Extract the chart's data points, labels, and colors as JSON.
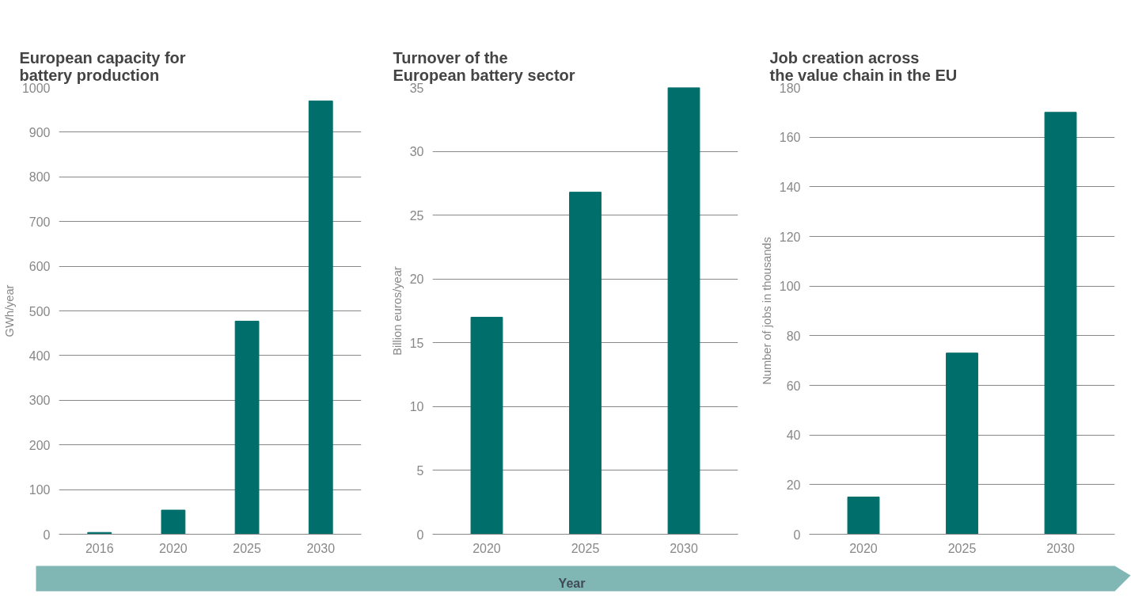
{
  "chart_data": [
    {
      "type": "bar",
      "title": "European capacity for\nbattery production",
      "ylabel": "GWh/year",
      "categories": [
        "2016",
        "2020",
        "2025",
        "2030"
      ],
      "values": [
        4,
        54,
        477,
        970
      ],
      "color": "#006e6b",
      "ylim": [
        0,
        1000
      ],
      "yticks": [
        0,
        100,
        200,
        300,
        400,
        500,
        600,
        700,
        800,
        900,
        1000
      ],
      "grid": "y"
    },
    {
      "type": "bar",
      "title": "Turnover of the\nEuropean battery sector",
      "ylabel": "Billion euros/year",
      "xlabel": "Year",
      "categories": [
        "2020",
        "2025",
        "2030"
      ],
      "values": [
        17,
        26.8,
        35
      ],
      "color": "#006e6b",
      "ylim": [
        0,
        35
      ],
      "yticks": [
        0,
        5,
        10,
        15,
        20,
        25,
        30,
        35
      ],
      "grid": "y"
    },
    {
      "type": "bar",
      "title": "Job creation across\nthe value chain in the EU",
      "ylabel": "Number of jobs in thousands",
      "categories": [
        "2020",
        "2025",
        "2030"
      ],
      "values": [
        15,
        73,
        170
      ],
      "color": "#006e6b",
      "ylim": [
        0,
        180
      ],
      "yticks": [
        0,
        20,
        40,
        60,
        80,
        100,
        120,
        140,
        160,
        180
      ],
      "grid": "y"
    }
  ]
}
